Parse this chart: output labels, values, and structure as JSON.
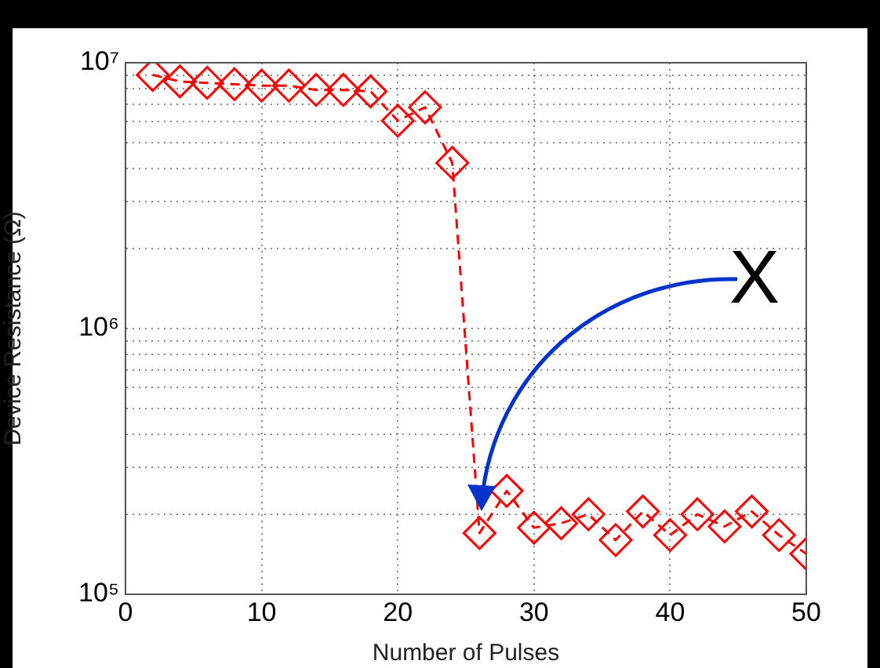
{
  "chart_data": {
    "type": "line",
    "xlabel": "Number of Pulses",
    "ylabel": "Device Resistance (Ω)",
    "x": [
      2,
      4,
      6,
      8,
      10,
      12,
      14,
      16,
      18,
      20,
      22,
      24,
      26,
      28,
      30,
      32,
      34,
      36,
      38,
      40,
      42,
      44,
      46,
      48,
      50
    ],
    "series": [
      {
        "color": "#ff0000",
        "values": [
          9000000,
          8500000,
          8400000,
          8300000,
          8200000,
          8200000,
          7900000,
          7900000,
          7800000,
          6050000,
          6800000,
          4200000,
          170000,
          245000,
          178000,
          185000,
          200000,
          160000,
          205000,
          167000,
          200000,
          180000,
          205000,
          167000,
          142000
        ]
      }
    ],
    "log": "y",
    "xlim": [
      0,
      50
    ],
    "xticks": [
      0,
      10,
      20,
      30,
      40,
      50
    ],
    "ylim": [
      100000,
      10000000
    ],
    "yticks": [
      {
        "value": 100000,
        "label": "10⁵"
      },
      {
        "value": 200000,
        "label": null
      },
      {
        "value": 300000,
        "label": null
      },
      {
        "value": 400000,
        "label": null
      },
      {
        "value": 500000,
        "label": null
      },
      {
        "value": 600000,
        "label": null
      },
      {
        "value": 700000,
        "label": null
      },
      {
        "value": 800000,
        "label": null
      },
      {
        "value": 900000,
        "label": null
      },
      {
        "value": 1000000,
        "label": "10⁶"
      },
      {
        "value": 2000000,
        "label": null
      },
      {
        "value": 3000000,
        "label": null
      },
      {
        "value": 4000000,
        "label": null
      },
      {
        "value": 5000000,
        "label": null
      },
      {
        "value": 6000000,
        "label": null
      },
      {
        "value": 7000000,
        "label": null
      },
      {
        "value": 8000000,
        "label": null
      },
      {
        "value": 9000000,
        "label": null
      },
      {
        "value": 10000000,
        "label": "10⁷"
      }
    ],
    "grid": true,
    "legend": false,
    "marker": "diamond",
    "line_style": "dashed",
    "annotations": [
      "X"
    ]
  }
}
